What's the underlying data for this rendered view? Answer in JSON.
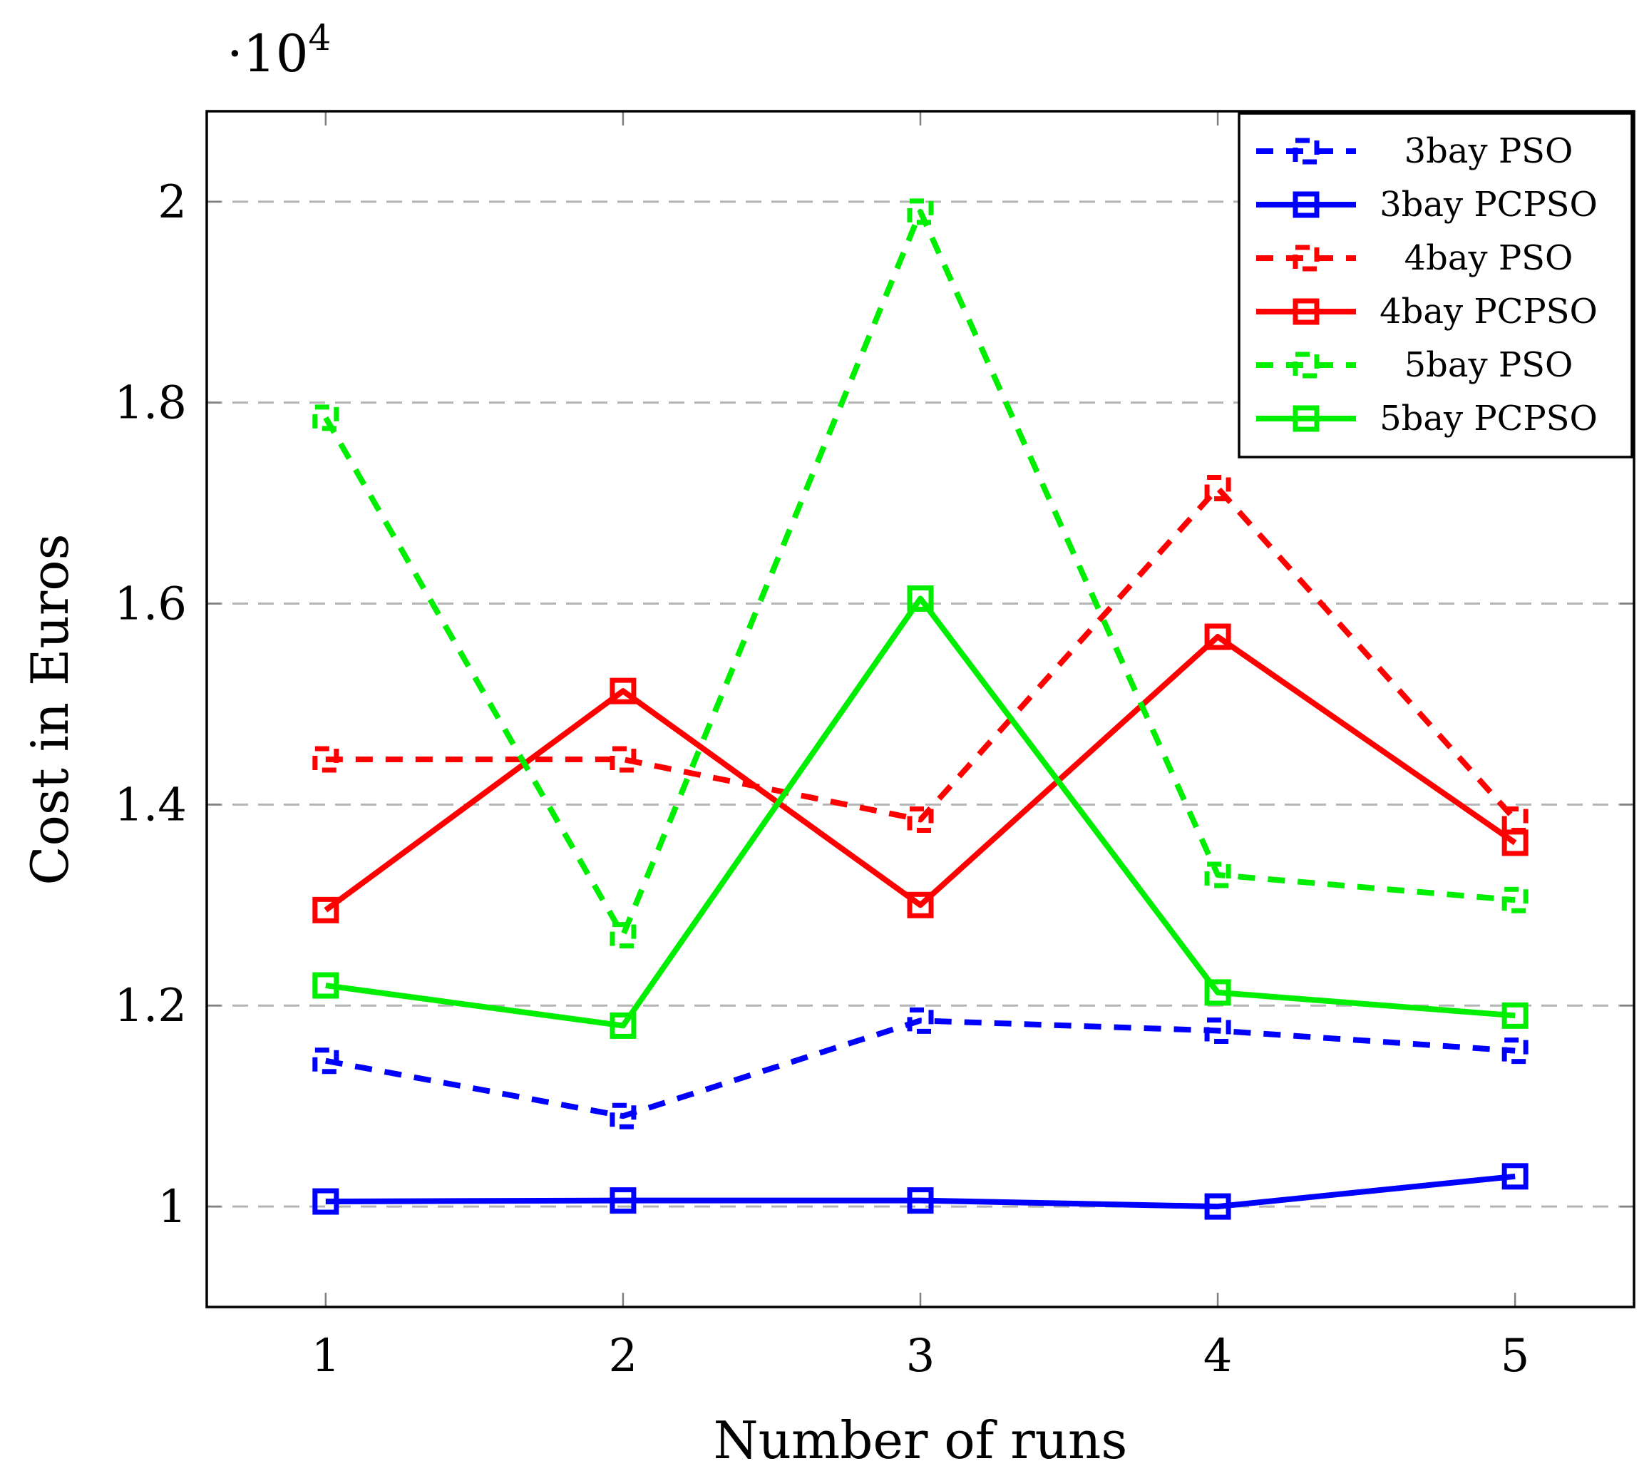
{
  "chart_data": {
    "type": "line",
    "title": "",
    "xlabel": "Number of runs",
    "ylabel": "Cost in Euros",
    "y_multiplier": "·10",
    "y_multiplier_exp": "4",
    "x": [
      1,
      2,
      3,
      4,
      5
    ],
    "x_tick_labels": [
      "1",
      "2",
      "3",
      "4",
      "5"
    ],
    "xlim": [
      0.6,
      5.4
    ],
    "ylim": [
      0.9,
      2.09
    ],
    "yticks": [
      1.0,
      1.2,
      1.4,
      1.6,
      1.8,
      2.0
    ],
    "y_tick_labels": [
      "1",
      "1.2",
      "1.4",
      "1.6",
      "1.8",
      "2"
    ],
    "grid": "horizontal dashed",
    "legend_position": "top-right",
    "series": [
      {
        "name": "3bay PSO",
        "color": "#0000ff",
        "style": "dashed",
        "values": [
          1.145,
          1.09,
          1.185,
          1.175,
          1.155
        ]
      },
      {
        "name": "3bay PCPSO",
        "color": "#0000ff",
        "style": "solid",
        "values": [
          1.005,
          1.006,
          1.006,
          1.0,
          1.03
        ]
      },
      {
        "name": "4bay PSO",
        "color": "#ff0000",
        "style": "dashed",
        "values": [
          1.445,
          1.445,
          1.385,
          1.715,
          1.385
        ]
      },
      {
        "name": "4bay PCPSO",
        "color": "#ff0000",
        "style": "solid",
        "values": [
          1.295,
          1.513,
          1.3,
          1.567,
          1.362
        ]
      },
      {
        "name": "5bay PSO",
        "color": "#00ee00",
        "style": "dashed",
        "values": [
          1.785,
          1.27,
          1.99,
          1.33,
          1.305
        ]
      },
      {
        "name": "5bay PCPSO",
        "color": "#00ee00",
        "style": "solid",
        "values": [
          1.22,
          1.18,
          1.605,
          1.213,
          1.19
        ]
      }
    ]
  }
}
